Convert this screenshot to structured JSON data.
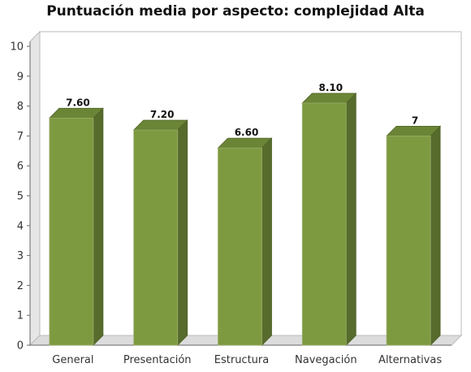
{
  "chart_data": {
    "type": "bar",
    "title": "Puntuación media por aspecto: complejidad Alta",
    "xlabel": "",
    "ylabel": "",
    "categories": [
      "General",
      "Presentación",
      "Estructura",
      "Navegación",
      "Alternativas"
    ],
    "values": [
      7.6,
      7.2,
      6.6,
      8.1,
      7
    ],
    "value_labels": [
      "7.60",
      "7.20",
      "6.60",
      "8.10",
      "7"
    ],
    "ylim": [
      0,
      10
    ],
    "yticks": [
      0,
      1,
      2,
      3,
      4,
      5,
      6,
      7,
      8,
      9,
      10
    ],
    "grid": false,
    "legend": "none",
    "three_d": true,
    "colors": {
      "bar_front": "#7e9a41",
      "bar_side": "#566b2c",
      "bar_top": "#6b8536",
      "bar_edge": "#4f6328",
      "wall": "#e6e6e6",
      "floor": "#dcdcdc",
      "axis": "#666666"
    }
  }
}
